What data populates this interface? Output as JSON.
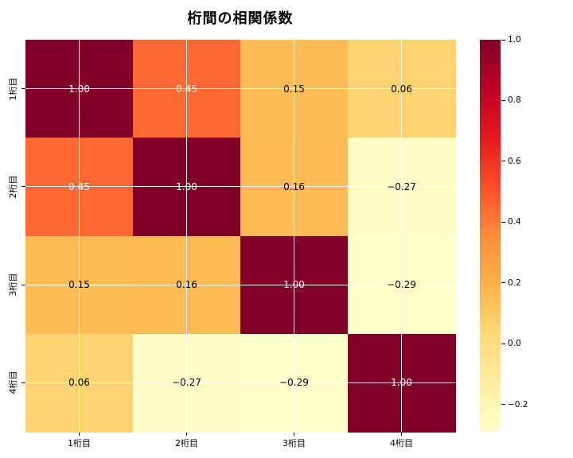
{
  "title": "桁間の相関係数",
  "chart_data": {
    "type": "heatmap",
    "x_categories": [
      "1桁目",
      "2桁目",
      "3桁目",
      "4桁目"
    ],
    "y_categories": [
      "1桁目",
      "2桁目",
      "3桁目",
      "4桁目"
    ],
    "matrix": [
      [
        1.0,
        0.45,
        0.15,
        0.06
      ],
      [
        0.45,
        1.0,
        0.16,
        -0.27
      ],
      [
        0.15,
        0.16,
        1.0,
        -0.29
      ],
      [
        0.06,
        -0.27,
        -0.29,
        1.0
      ]
    ],
    "value_decimals": 2,
    "vmin": -0.29,
    "vmax": 1.0,
    "grid": true,
    "gridline_color": "#ffffff",
    "annotation_color_light_cells": "#000000",
    "annotation_color_dark_cells": "#ffffff",
    "colormap": {
      "name": "YlOrRd",
      "stops": [
        [
          0.0,
          "#ffffcc"
        ],
        [
          0.125,
          "#ffeda0"
        ],
        [
          0.25,
          "#fed976"
        ],
        [
          0.375,
          "#feb24c"
        ],
        [
          0.5,
          "#fd8d3c"
        ],
        [
          0.625,
          "#fc4e2a"
        ],
        [
          0.75,
          "#e31a1c"
        ],
        [
          0.875,
          "#bd0026"
        ],
        [
          1.0,
          "#800026"
        ]
      ]
    },
    "colorbar": {
      "position": "right",
      "tick_labels": [
        "1.0",
        "0.8",
        "0.6",
        "0.4",
        "0.2",
        "0.0",
        "−0.2"
      ],
      "tick_values": [
        1.0,
        0.8,
        0.6,
        0.4,
        0.2,
        0.0,
        -0.2
      ]
    }
  }
}
